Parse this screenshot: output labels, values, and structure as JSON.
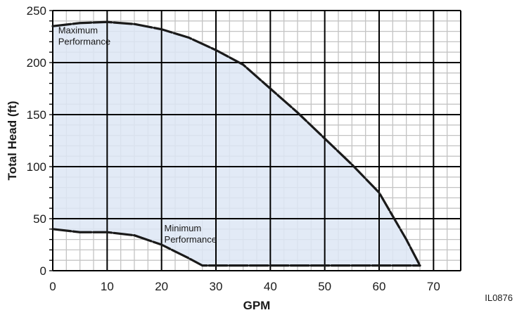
{
  "chart_data": {
    "type": "area",
    "xlabel": "GPM",
    "ylabel": "Total Head (ft)",
    "xlim": [
      0,
      75
    ],
    "ylim": [
      0,
      250
    ],
    "x_major_ticks": [
      0,
      10,
      20,
      30,
      40,
      50,
      60,
      70
    ],
    "y_major_ticks": [
      0,
      50,
      100,
      150,
      200,
      250
    ],
    "x_minor_step": 2.5,
    "y_minor_step": 10,
    "grid": true,
    "series": [
      {
        "key": "max",
        "x": [
          0,
          5,
          10,
          15,
          20,
          25,
          30,
          35,
          40,
          45,
          50,
          55,
          60,
          65,
          67.5
        ],
        "y": [
          235,
          238,
          239,
          237,
          232,
          224,
          212,
          198,
          175,
          152,
          127,
          102,
          75,
          30,
          5
        ]
      },
      {
        "key": "min",
        "x": [
          0,
          5,
          10,
          15,
          20,
          25,
          27.5,
          67.5
        ],
        "y": [
          40,
          37,
          37,
          34,
          25,
          12,
          5,
          5
        ]
      }
    ],
    "annotations": [
      {
        "key": "max",
        "lines": [
          "Maximum",
          "Performance"
        ],
        "x": 1,
        "y": 228
      },
      {
        "key": "min",
        "lines": [
          "Minimum",
          "Performance"
        ],
        "x": 20.5,
        "y": 38
      }
    ],
    "fill_color": "#dde6f4",
    "grid_major_color": "#000000",
    "grid_minor_color": "#c4c4c4",
    "curve_color": "#1a1a1a"
  },
  "figure_code": "IL0876"
}
